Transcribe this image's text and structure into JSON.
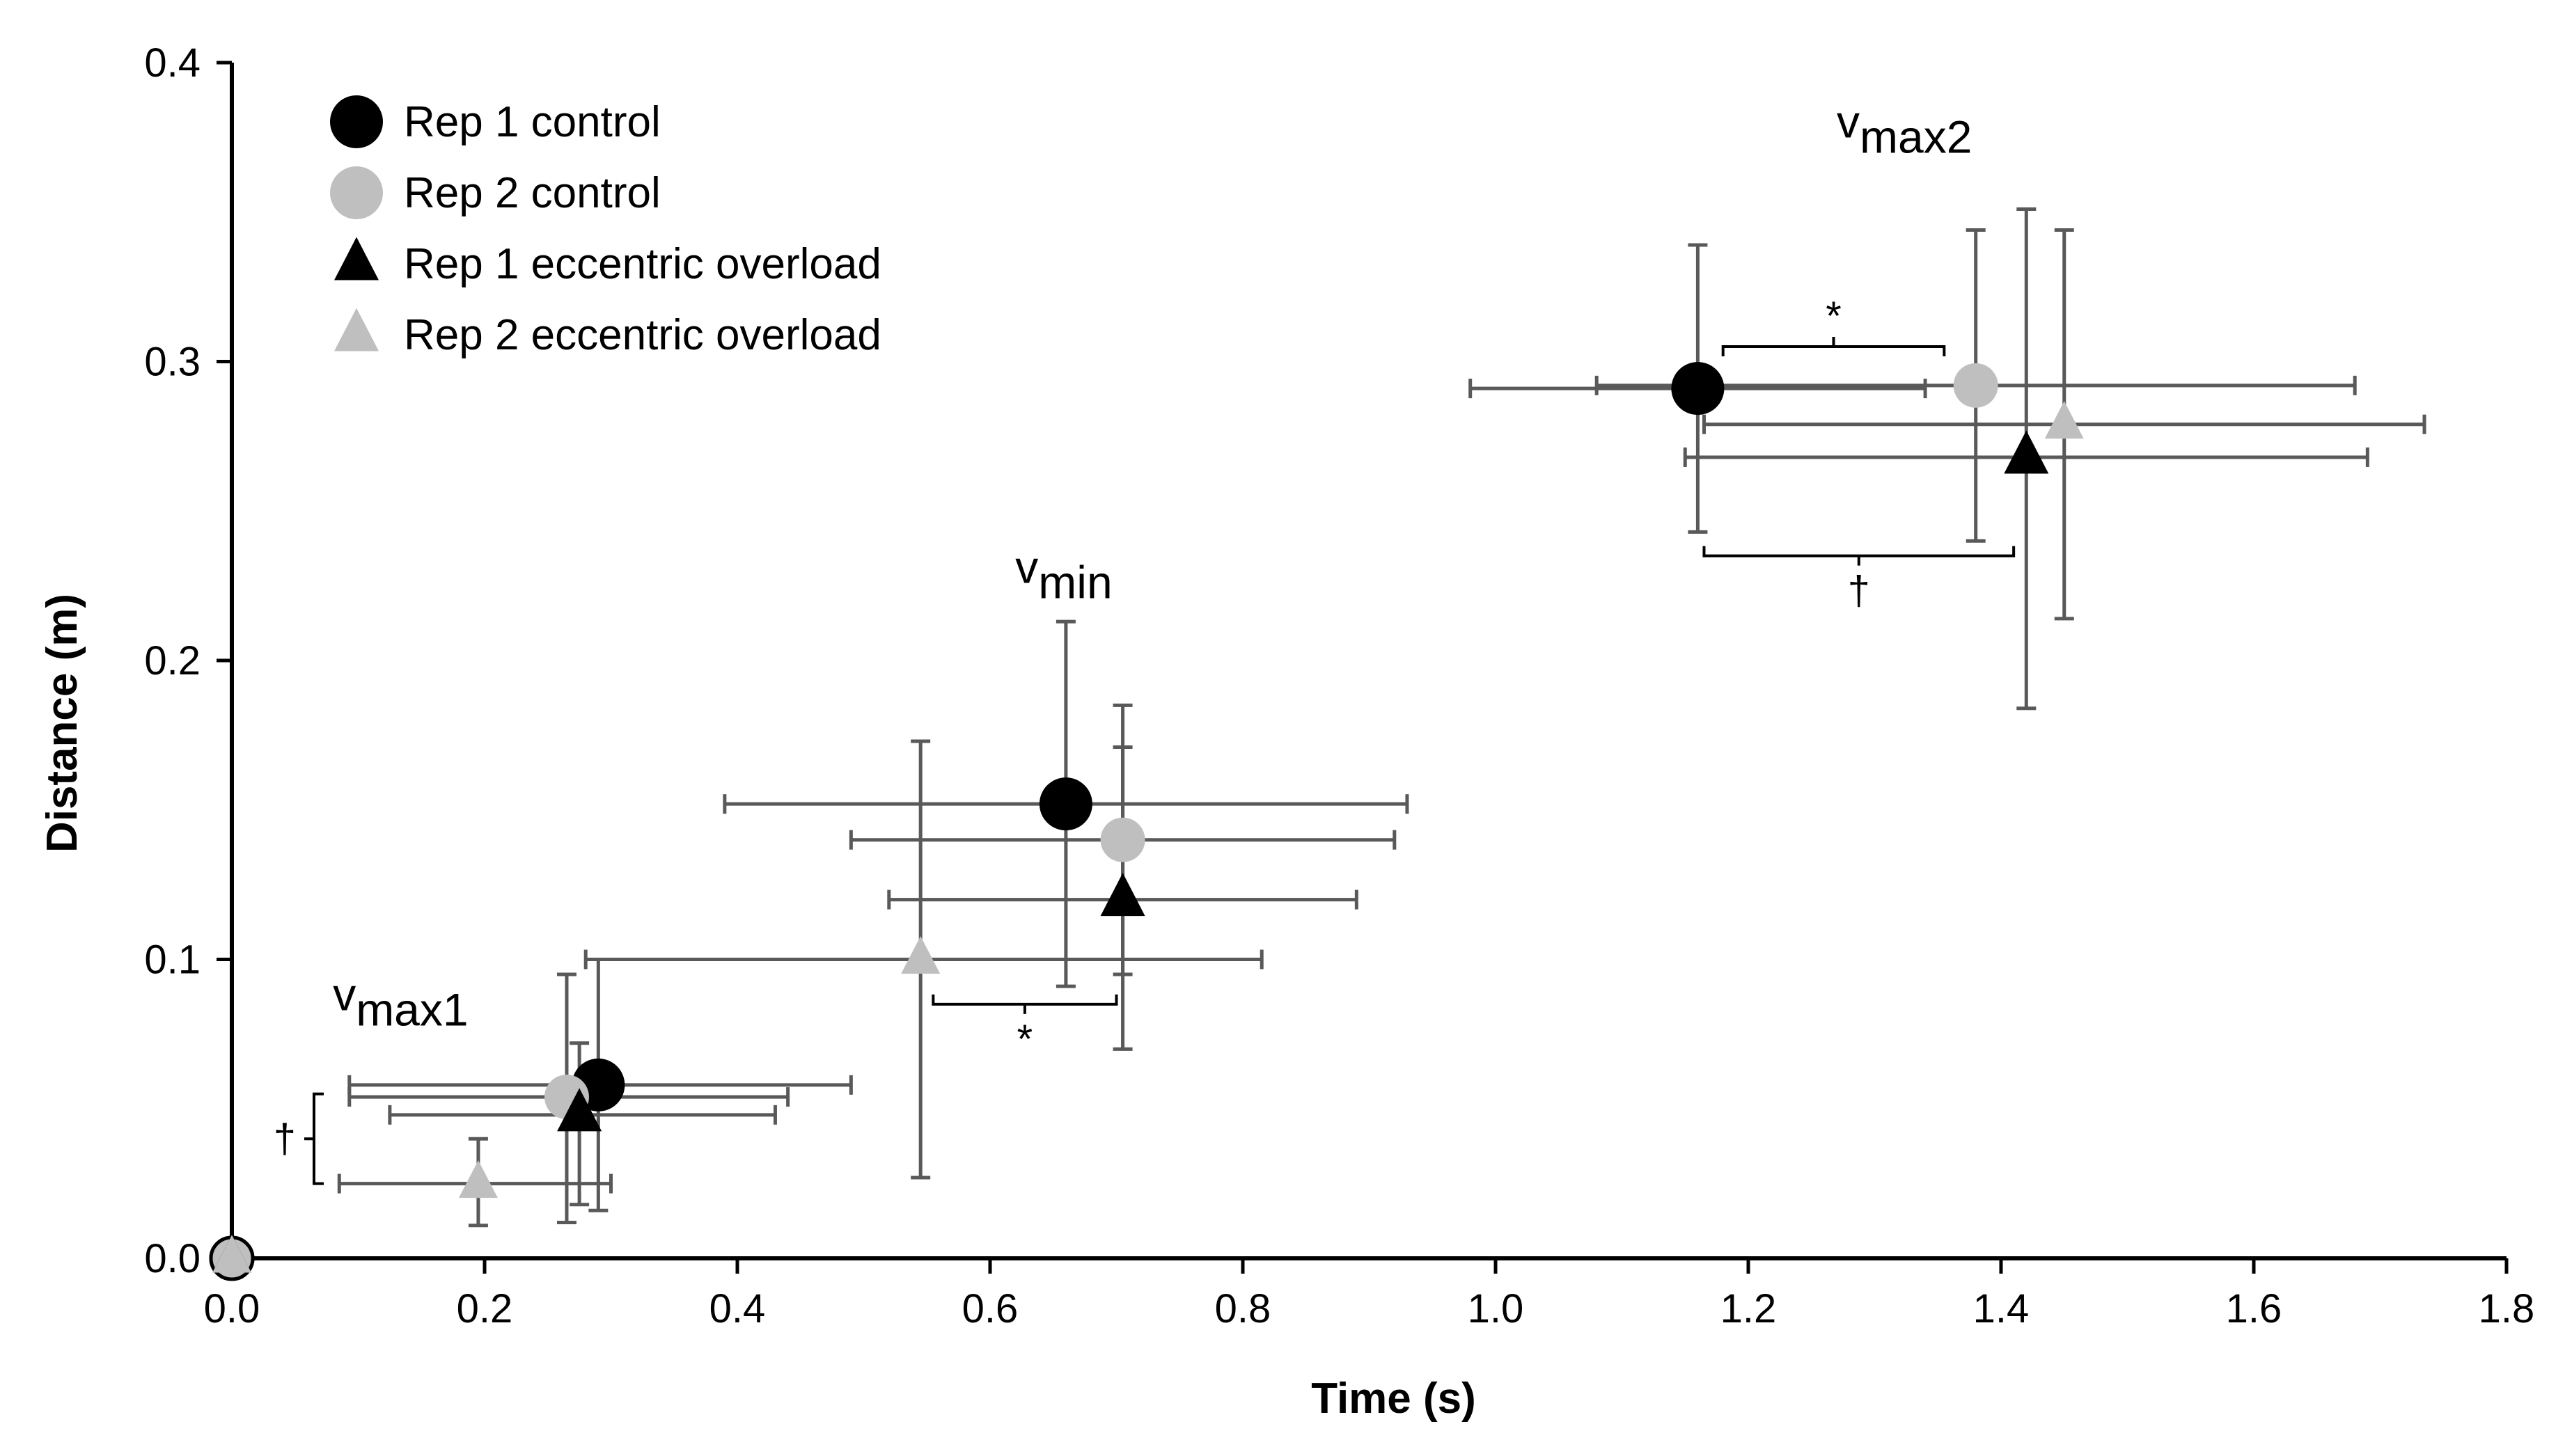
{
  "chart_data": {
    "type": "scatter",
    "xlabel": "Time (s)",
    "ylabel": "Distance (m)",
    "xlim": [
      0,
      1.8
    ],
    "ylim": [
      0,
      0.4
    ],
    "x_ticks": [
      "0.0",
      "0.2",
      "0.4",
      "0.6",
      "0.8",
      "1.0",
      "1.2",
      "1.4",
      "1.6",
      "1.8"
    ],
    "y_ticks": [
      "0.0",
      "0.1",
      "0.2",
      "0.3",
      "0.4"
    ],
    "grid": false,
    "legend_position": "top-left",
    "error_bar_color": "#595959",
    "series": [
      {
        "name": "Rep 1 control",
        "marker": "circle",
        "color": "#000000",
        "points": [
          {
            "x": 0.0,
            "y": 0.0,
            "x_err": [
              0.0,
              0.0
            ],
            "y_err": [
              0.0,
              0.0
            ]
          },
          {
            "x": 0.29,
            "y": 0.058,
            "x_err": [
              0.093,
              0.49
            ],
            "y_err": [
              0.016,
              0.1
            ]
          },
          {
            "x": 0.66,
            "y": 0.152,
            "x_err": [
              0.39,
              0.93
            ],
            "y_err": [
              0.091,
              0.213
            ]
          },
          {
            "x": 1.16,
            "y": 0.291,
            "x_err": [
              0.98,
              1.34
            ],
            "y_err": [
              0.243,
              0.339
            ]
          }
        ]
      },
      {
        "name": "Rep 2 control",
        "marker": "circle",
        "color": "#bfbfbf",
        "points": [
          {
            "x": 0.0,
            "y": 0.0,
            "x_err": [
              0.0,
              0.0
            ],
            "y_err": [
              0.0,
              0.0
            ]
          },
          {
            "x": 0.265,
            "y": 0.054,
            "x_err": [
              0.093,
              0.44
            ],
            "y_err": [
              0.012,
              0.095
            ]
          },
          {
            "x": 0.705,
            "y": 0.14,
            "x_err": [
              0.49,
              0.92
            ],
            "y_err": [
              0.095,
              0.185
            ]
          },
          {
            "x": 1.38,
            "y": 0.292,
            "x_err": [
              1.08,
              1.68
            ],
            "y_err": [
              0.24,
              0.344
            ]
          }
        ]
      },
      {
        "name": "Rep 1 eccentric overload",
        "marker": "triangle",
        "color": "#000000",
        "points": [
          {
            "x": 0.0,
            "y": 0.0,
            "x_err": [
              0.0,
              0.0
            ],
            "y_err": [
              0.0,
              0.0
            ]
          },
          {
            "x": 0.275,
            "y": 0.048,
            "x_err": [
              0.125,
              0.43
            ],
            "y_err": [
              0.018,
              0.072
            ]
          },
          {
            "x": 0.705,
            "y": 0.12,
            "x_err": [
              0.52,
              0.89
            ],
            "y_err": [
              0.07,
              0.171
            ]
          },
          {
            "x": 1.42,
            "y": 0.268,
            "x_err": [
              1.15,
              1.69
            ],
            "y_err": [
              0.184,
              0.351
            ]
          }
        ]
      },
      {
        "name": "Rep 2 eccentric overload",
        "marker": "triangle",
        "color": "#bfbfbf",
        "points": [
          {
            "x": 0.0,
            "y": 0.0,
            "x_err": [
              0.0,
              0.0
            ],
            "y_err": [
              0.0,
              0.0
            ]
          },
          {
            "x": 0.195,
            "y": 0.025,
            "x_err": [
              0.085,
              0.3
            ],
            "y_err": [
              0.011,
              0.04
            ]
          },
          {
            "x": 0.545,
            "y": 0.1,
            "x_err": [
              0.28,
              0.815
            ],
            "y_err": [
              0.027,
              0.173
            ]
          },
          {
            "x": 1.45,
            "y": 0.279,
            "x_err": [
              1.165,
              1.735
            ],
            "y_err": [
              0.214,
              0.344
            ]
          }
        ]
      }
    ],
    "annotations": [
      {
        "text": "v",
        "subscript": "max1",
        "x": 0.08,
        "y": 0.083
      },
      {
        "text": "v",
        "subscript": "min",
        "x": 0.62,
        "y": 0.226
      },
      {
        "text": "v",
        "subscript": "max2",
        "x": 1.27,
        "y": 0.375
      }
    ],
    "significance": [
      {
        "symbol": "*",
        "orientation": "horizontal",
        "x_range": [
          0.555,
          0.7
        ],
        "y": 0.085,
        "label_side": "below"
      },
      {
        "symbol": "*",
        "orientation": "horizontal",
        "x_range": [
          1.18,
          1.355
        ],
        "y": 0.305,
        "label_side": "above"
      },
      {
        "symbol": "†",
        "orientation": "horizontal",
        "x_range": [
          1.165,
          1.41
        ],
        "y": 0.235,
        "label_side": "below"
      },
      {
        "symbol": "†",
        "orientation": "vertical",
        "y_range": [
          0.025,
          0.055
        ],
        "x": 0.065,
        "label_side": "left"
      }
    ]
  }
}
